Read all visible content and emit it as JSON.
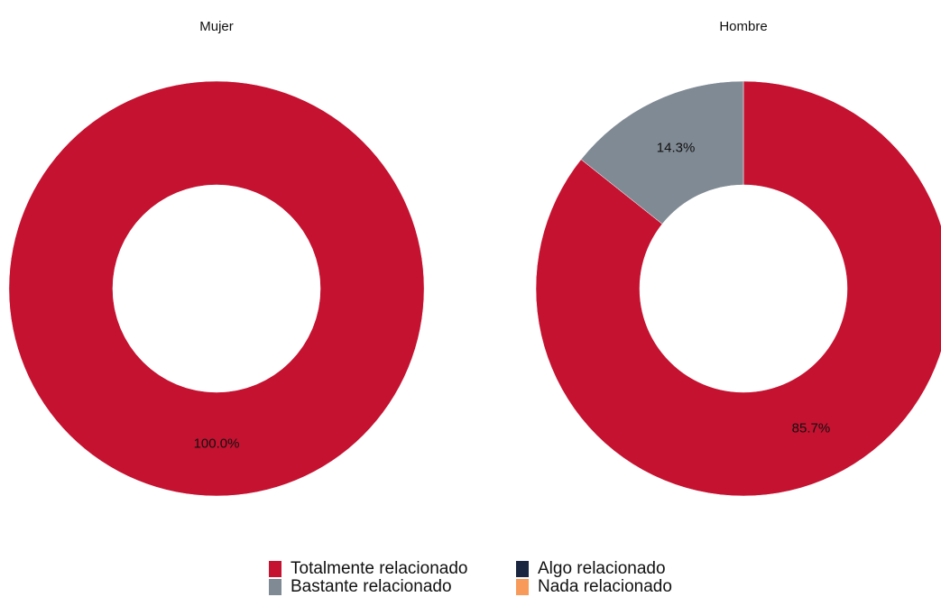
{
  "chart_data": [
    {
      "type": "pie",
      "title": "Mujer",
      "categories": [
        "Totalmente relacionado",
        "Bastante relacionado",
        "Algo relacionado",
        "Nada relacionado"
      ],
      "values": [
        100,
        0,
        0,
        0
      ],
      "value_labels": [
        "100.0%",
        null,
        null,
        null
      ],
      "colors": [
        "#c41230",
        "#808a94",
        "#1a2540",
        "#f79a5a"
      ]
    },
    {
      "type": "pie",
      "title": "Hombre",
      "categories": [
        "Totalmente relacionado",
        "Bastante relacionado",
        "Algo relacionado",
        "Nada relacionado"
      ],
      "values": [
        85.7,
        14.3,
        0,
        0
      ],
      "value_labels": [
        "85.7%",
        "14.3%",
        null,
        null
      ],
      "colors": [
        "#c41230",
        "#808a94",
        "#1a2540",
        "#f79a5a"
      ]
    }
  ]
}
